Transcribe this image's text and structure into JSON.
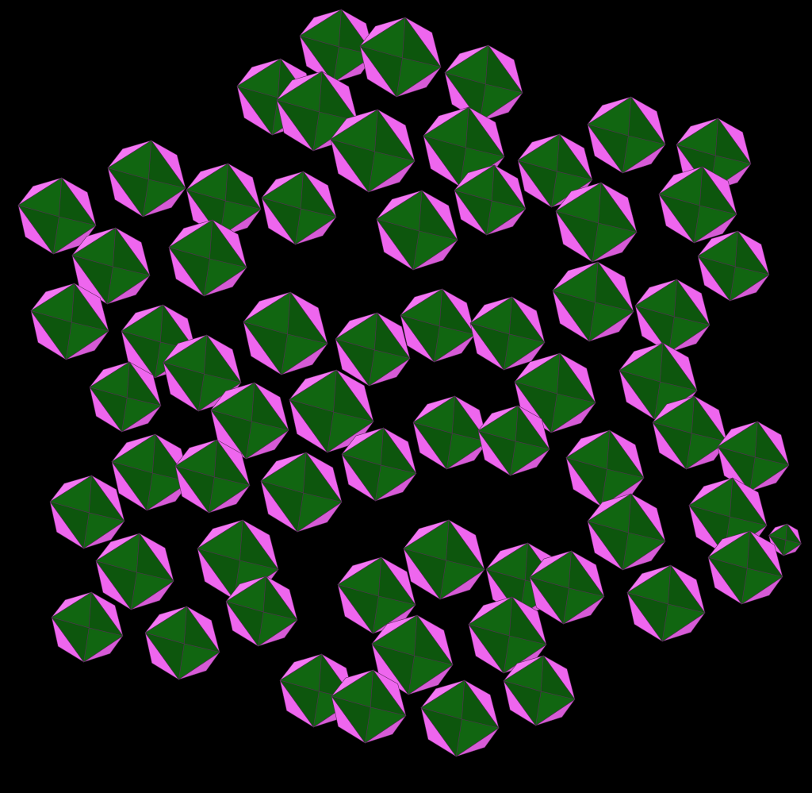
{
  "image": {
    "subject": "polyhedral-crystal-structure",
    "colors": {
      "background": "#000000",
      "face_green": "#116611",
      "face_green_dark": "#0d560d",
      "face_pink": "#ee66ee",
      "face_pink_light": "#f477f4",
      "face_pink_dark": "#d65bd6",
      "edge": "#5a2a5a"
    }
  }
}
